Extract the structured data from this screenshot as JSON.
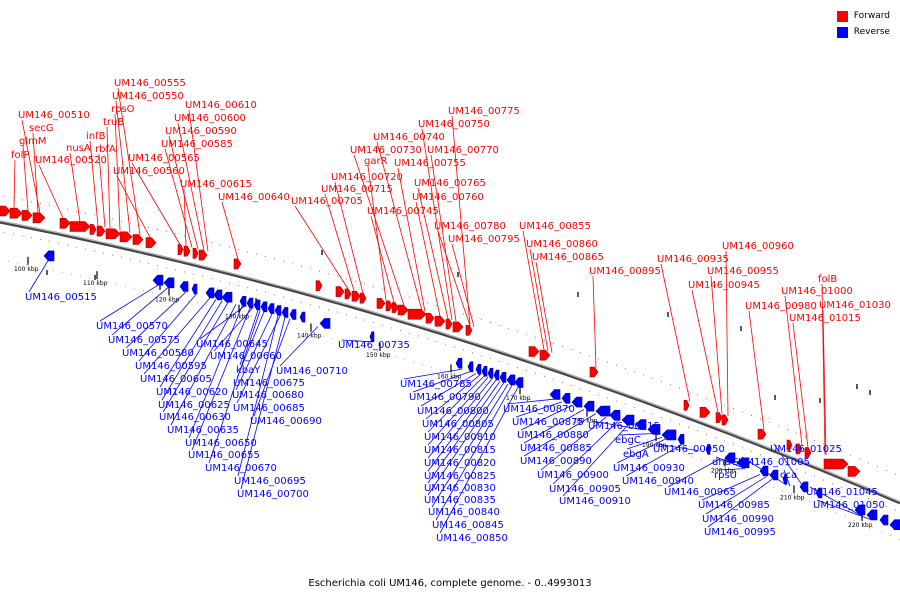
{
  "legend": {
    "forward_label": "Forward",
    "reverse_label": "Reverse",
    "forward_color": "#ff0000",
    "reverse_color": "#0000ff"
  },
  "caption": "Escherichia coli UM146, complete genome. - 0..4993013",
  "scale_ticks": [
    "100 kbp",
    "110 kbp",
    "120 kbp",
    "130 kbp",
    "140 kbp",
    "150 kbp",
    "160 kbp",
    "170 kbp",
    "180 kbp",
    "190 kbp",
    "200 kbp",
    "210 kbp",
    "220 kbp"
  ],
  "forward_labels": [
    "UM146_00555",
    "UM146_00550",
    "rpsO",
    "truB",
    "infB",
    "rbfA",
    "nusA",
    "UM146_00520",
    "UM146_00510",
    "secG",
    "glmM",
    "folP",
    "UM146_00610",
    "UM146_00600",
    "UM146_00590",
    "UM146_00585",
    "UM146_00565",
    "UM146_00560",
    "UM146_00615",
    "UM146_00640",
    "UM146_00775",
    "UM146_00750",
    "UM146_00740",
    "UM146_00730",
    "UM146_00770",
    "garR",
    "UM146_00755",
    "UM146_00720",
    "UM146_00715",
    "UM146_00765",
    "UM146_00705",
    "UM146_00760",
    "UM146_00745",
    "UM146_00780",
    "UM146_00795",
    "UM146_00855",
    "UM146_00860",
    "UM146_00865",
    "UM146_00895",
    "UM146_00960",
    "UM146_00935",
    "UM146_00955",
    "UM146_00945",
    "folB",
    "UM146_00980",
    "UM146_01000",
    "UM146_01030",
    "UM146_01015"
  ],
  "reverse_labels": [
    "UM146_00515",
    "UM146_00570",
    "UM146_00575",
    "UM146_00580",
    "UM146_00595",
    "UM146_00605",
    "UM146_00620",
    "UM146_00625",
    "UM146_00630",
    "UM146_00635",
    "UM146_00645",
    "UM146_00660",
    "kbaY",
    "UM146_00675",
    "UM146_00680",
    "UM146_00685",
    "UM146_00690",
    "UM146_00650",
    "UM146_00655",
    "UM146_00670",
    "UM146_00695",
    "UM146_00700",
    "UM146_00710",
    "UM146_00735",
    "UM146_00785",
    "UM146_00790",
    "UM146_00800",
    "UM146_00805",
    "UM146_00810",
    "UM146_00815",
    "UM146_00820",
    "UM146_00825",
    "UM146_00830",
    "UM146_00835",
    "UM146_00840",
    "UM146_00845",
    "UM146_00850",
    "UM146_00870",
    "UM146_00875",
    "UM146_00880",
    "UM146_00885",
    "UM146_00890",
    "UM146_00900",
    "UM146_00905",
    "UM146_00910",
    "UM146_00915",
    "ebgC",
    "ebgA",
    "UM146_00930",
    "UM146_00940",
    "UM146_00950",
    "dnaG",
    "rpsU",
    "UM146_00965",
    "UM146_00985",
    "UM146_00990",
    "UM146_00995",
    "UM146_01005",
    "cca",
    "UM146_01025",
    "UM146_01045",
    "UM146_01050"
  ]
}
